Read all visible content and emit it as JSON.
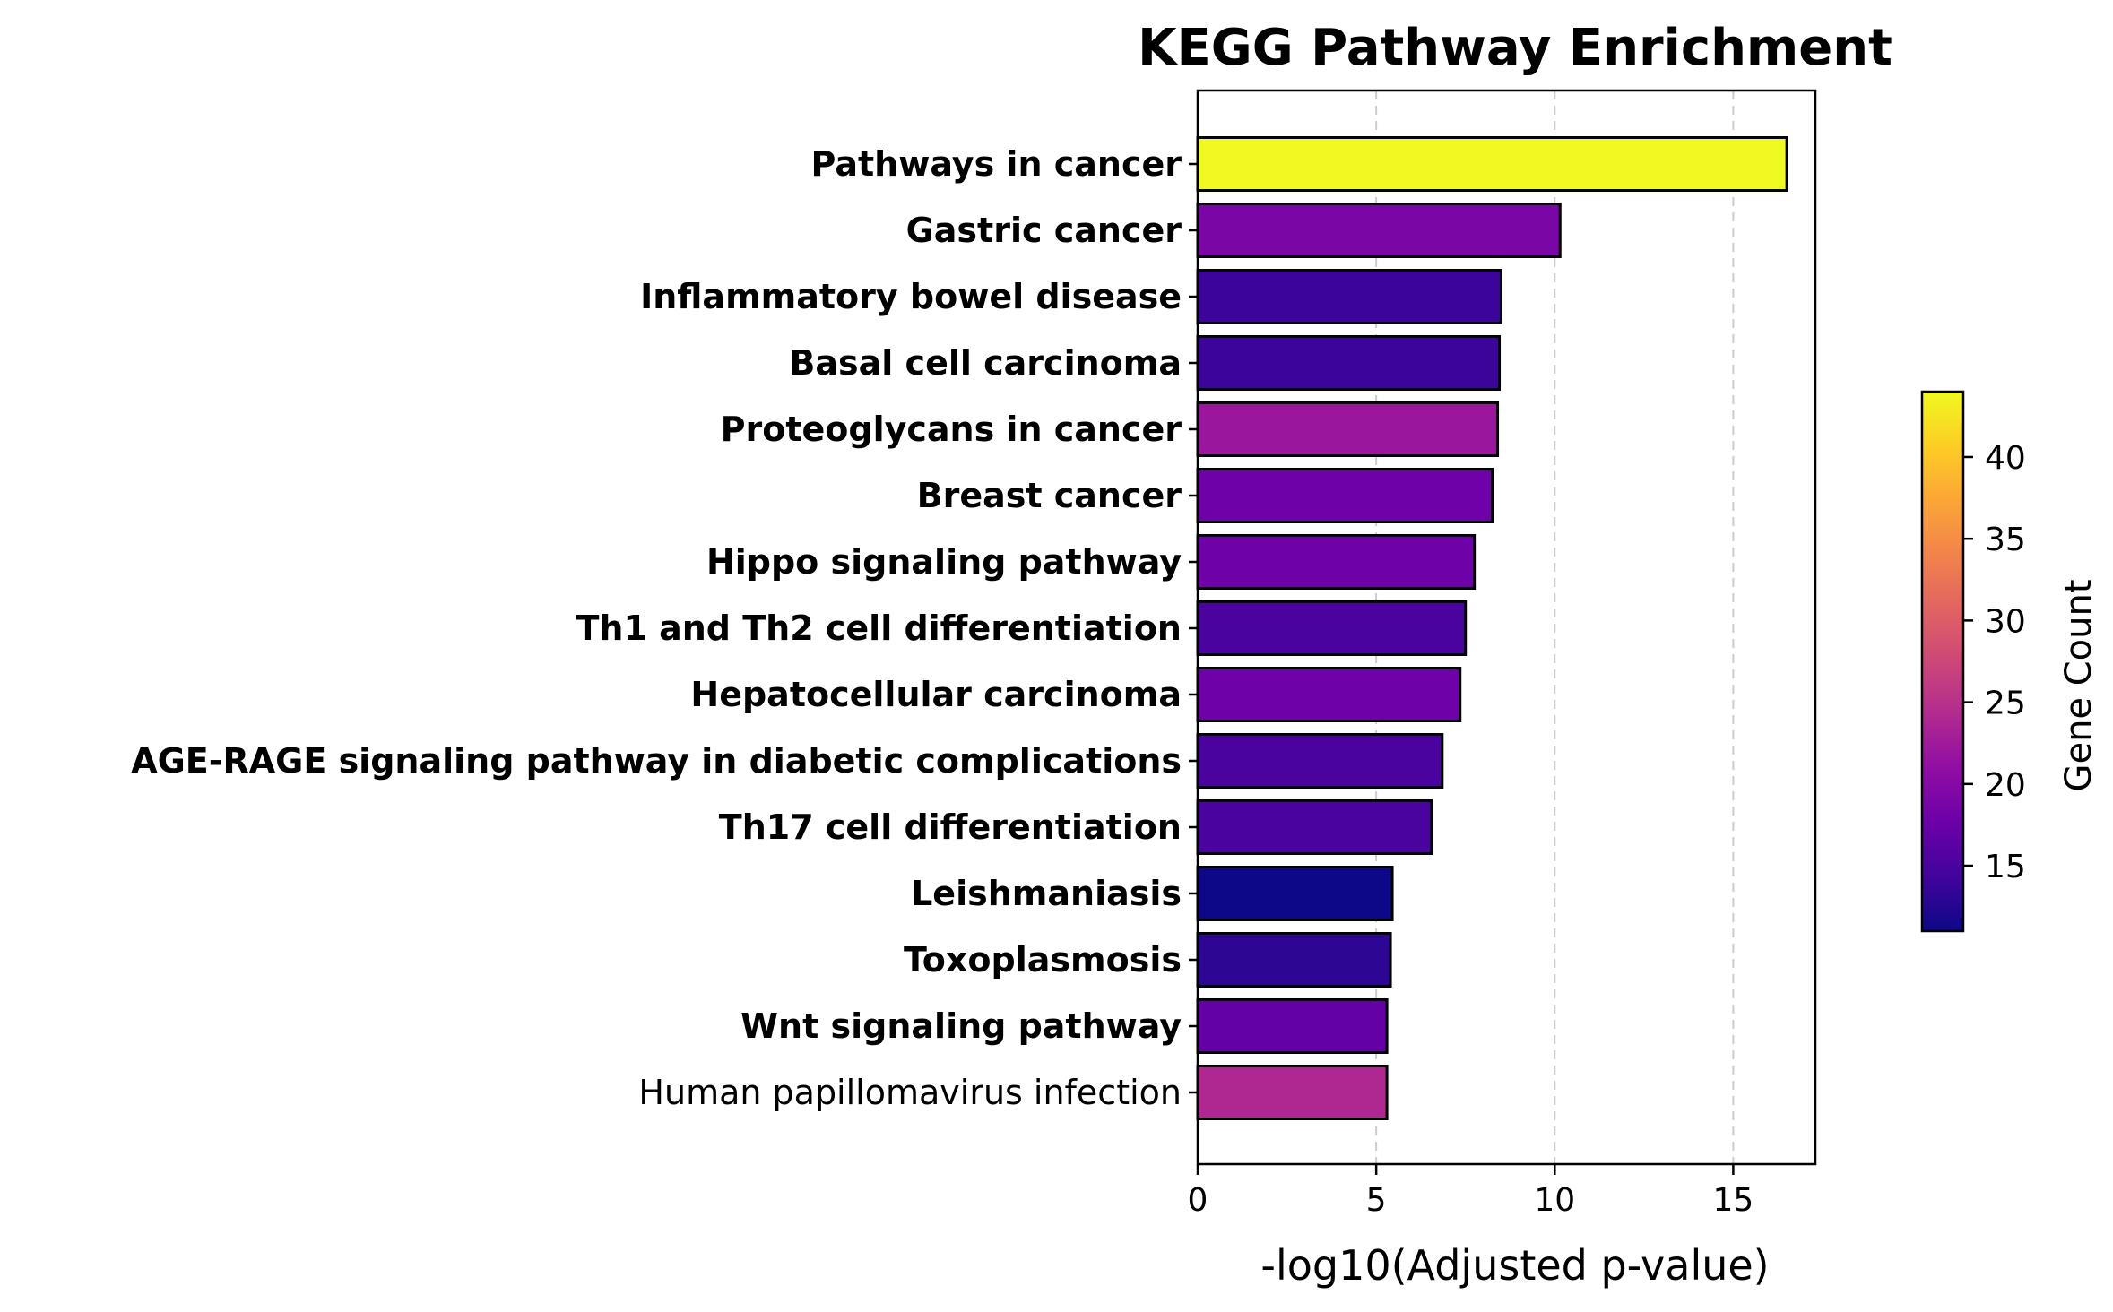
{
  "chart_data": {
    "type": "bar",
    "orientation": "horizontal",
    "title": "KEGG Pathway Enrichment",
    "xlabel": "-log10(Adjusted p-value)",
    "ylabel": "",
    "xlim": [
      0,
      17.3
    ],
    "xticks": [
      0,
      5,
      10,
      15
    ],
    "grid": "x dashed",
    "categories": [
      "Pathways in cancer",
      "Gastric cancer",
      "Inflammatory bowel disease",
      "Basal cell carcinoma",
      "Proteoglycans in cancer",
      "Breast cancer",
      "Hippo signaling pathway",
      "Th1 and Th2 cell differentiation",
      "Hepatocellular carcinoma",
      "AGE-RAGE signaling pathway in diabetic complications",
      "Th17 cell differentiation",
      "Leishmaniasis",
      "Toxoplasmosis",
      "Wnt signaling pathway",
      "Human papillomavirus infection"
    ],
    "bold_labels": [
      true,
      true,
      true,
      true,
      true,
      true,
      true,
      true,
      true,
      true,
      true,
      true,
      true,
      true,
      false
    ],
    "values": [
      16.5,
      10.15,
      8.5,
      8.45,
      8.4,
      8.25,
      7.75,
      7.5,
      7.35,
      6.85,
      6.55,
      5.45,
      5.4,
      5.3,
      5.3
    ],
    "gene_counts": [
      44,
      19,
      14,
      14,
      22,
      18,
      18,
      15,
      18,
      15,
      15,
      11,
      13,
      17,
      24
    ],
    "colorbar": {
      "label": "Gene Count",
      "range": [
        11,
        44
      ],
      "ticks": [
        15,
        20,
        25,
        30,
        35,
        40
      ],
      "colormap": "plasma"
    },
    "colors": {
      "bar_edge": "#000000",
      "grid": "#cccccc"
    }
  }
}
